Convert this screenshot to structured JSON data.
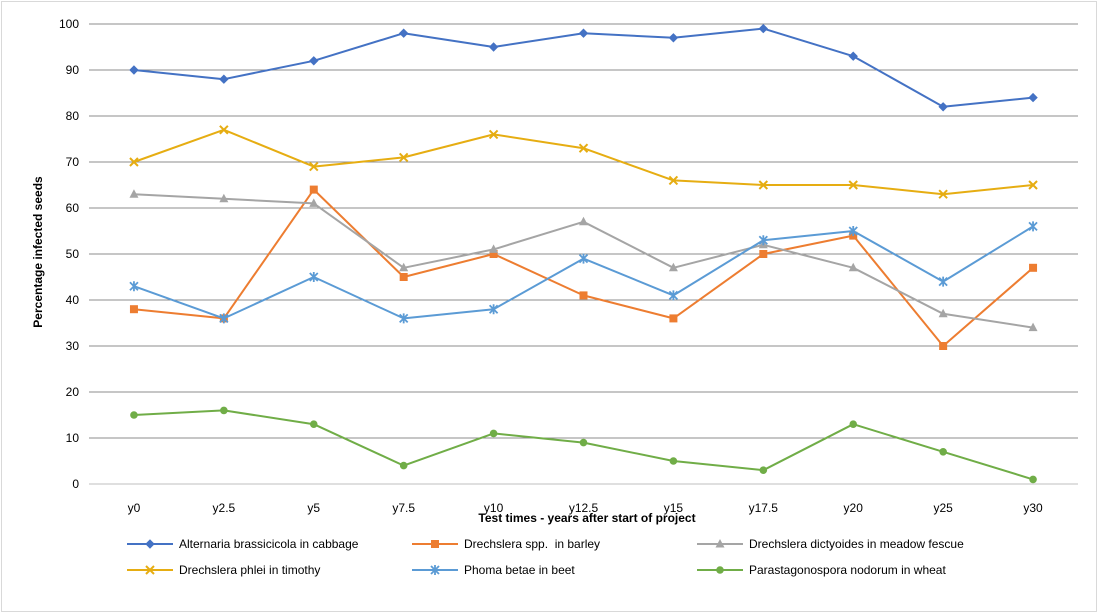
{
  "chart_data": {
    "type": "line",
    "title": "",
    "xlabel": "Test times - years after start of project",
    "ylabel": "Percentage infected seeds",
    "ylim": [
      0,
      100
    ],
    "yticks": [
      0,
      10,
      20,
      30,
      40,
      50,
      60,
      70,
      80,
      90,
      100
    ],
    "grid": "horizontal",
    "legend_position": "bottom",
    "categories": [
      "y0",
      "y2.5",
      "y5",
      "y7.5",
      "y10",
      "y12.5",
      "y15",
      "y17.5",
      "y20",
      "y25",
      "y30"
    ],
    "series": [
      {
        "name": "Alternaria brassicicola in cabbage",
        "color": "#4472c4",
        "marker": "diamond",
        "values": [
          90,
          88,
          92,
          98,
          95,
          98,
          97,
          99,
          93,
          82,
          84
        ]
      },
      {
        "name": "Drechslera spp.  in barley",
        "color": "#ed7d31",
        "marker": "square",
        "values": [
          38,
          36,
          64,
          45,
          50,
          41,
          36,
          50,
          54,
          30,
          47
        ]
      },
      {
        "name": "Drechslera dictyoides in meadow fescue",
        "color": "#a5a5a5",
        "marker": "triangle",
        "values": [
          63,
          62,
          61,
          47,
          51,
          57,
          47,
          52,
          47,
          37,
          34
        ]
      },
      {
        "name": "Drechslera phlei in timothy",
        "color": "#e6ad12",
        "marker": "x",
        "values": [
          70,
          77,
          69,
          71,
          76,
          73,
          66,
          65,
          65,
          63,
          65
        ]
      },
      {
        "name": "Phoma betae in beet",
        "color": "#5b9bd5",
        "marker": "star",
        "values": [
          43,
          36,
          45,
          36,
          38,
          49,
          41,
          53,
          55,
          44,
          56
        ]
      },
      {
        "name": "Parastagonospora nodorum in wheat",
        "color": "#70ad47",
        "marker": "circle",
        "values": [
          15,
          16,
          13,
          4,
          11,
          9,
          5,
          3,
          13,
          7,
          1
        ]
      }
    ]
  }
}
